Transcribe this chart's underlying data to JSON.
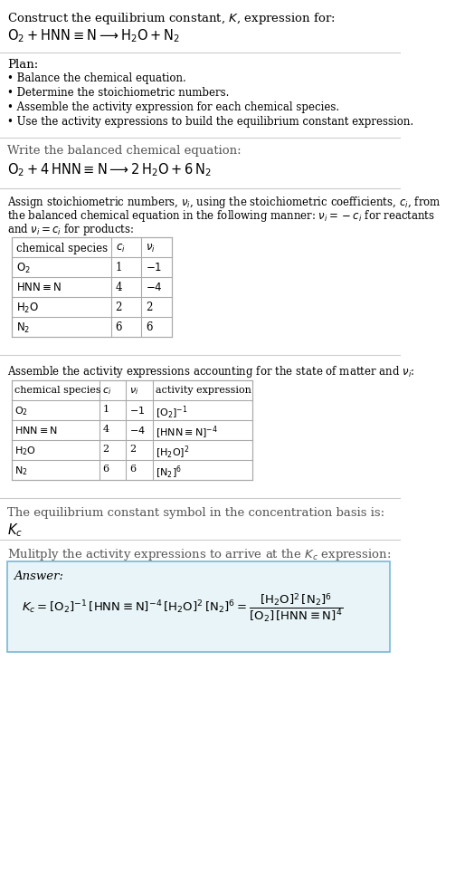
{
  "bg_color": "#ffffff",
  "text_color": "#000000",
  "gray_text": "#555555",
  "table_border": "#aaaaaa",
  "answer_box_bg": "#e8f4f8",
  "answer_box_border": "#7ab8d4",
  "title_line1": "Construct the equilibrium constant, $K$, expression for:",
  "reaction_unbalanced": "$\\mathrm{O_2 + HNN{\\equiv}N \\longrightarrow H_2O + N_2}$",
  "plan_header": "Plan:",
  "plan_items": [
    "\\textbf{\\cdot} Balance the chemical equation.",
    "\\textbf{\\cdot} Determine the stoichiometric numbers.",
    "\\textbf{\\cdot} Assemble the activity expression for each chemical species.",
    "\\textbf{\\cdot} Use the activity expressions to build the equilibrium constant expression."
  ],
  "balanced_header": "Write the balanced chemical equation:",
  "reaction_balanced": "$\\mathrm{O_2 + 4\\,HNN{\\equiv}N \\longrightarrow 2\\,H_2O + 6\\,N_2}$",
  "stoich_header": "Assign stoichiometric numbers, $\\nu_i$, using the stoichiometric coefficients, $c_i$, from\nthe balanced chemical equation in the following manner: $\\nu_i = -c_i$ for reactants\nand $\\nu_i = c_i$ for products:",
  "table1_cols": [
    "chemical species",
    "$c_i$",
    "$\\nu_i$"
  ],
  "table1_rows": [
    [
      "$\\mathrm{O_2}$",
      "1",
      "$-1$"
    ],
    [
      "$\\mathrm{HNN{\\equiv}N}$",
      "4",
      "$-4$"
    ],
    [
      "$\\mathrm{H_2O}$",
      "2",
      "2"
    ],
    [
      "$\\mathrm{N_2}$",
      "6",
      "6"
    ]
  ],
  "activity_header": "Assemble the activity expressions accounting for the state of matter and $\\nu_i$:",
  "table2_cols": [
    "chemical species",
    "$c_i$",
    "$\\nu_i$",
    "activity expression"
  ],
  "table2_rows": [
    [
      "$\\mathrm{O_2}$",
      "1",
      "$-1$",
      "$[\\mathrm{O_2}]^{-1}$"
    ],
    [
      "$\\mathrm{HNN{\\equiv}N}$",
      "4",
      "$-4$",
      "$[\\mathrm{HNN{\\equiv}N}]^{-4}$"
    ],
    [
      "$\\mathrm{H_2O}$",
      "2",
      "2",
      "$[\\mathrm{H_2O}]^{2}$"
    ],
    [
      "$\\mathrm{N_2}$",
      "6",
      "6",
      "$[\\mathrm{N_2}]^{6}$"
    ]
  ],
  "kc_header": "The equilibrium constant symbol in the concentration basis is:",
  "kc_symbol": "$K_c$",
  "multiply_header": "Mulitply the activity expressions to arrive at the $K_c$ expression:",
  "answer_label": "Answer:",
  "answer_eq": "$K_c = [\\mathrm{O_2}]^{-1}\\,[\\mathrm{HNN{\\equiv}N}]^{-4}\\,[\\mathrm{H_2O}]^{2}\\,[\\mathrm{N_2}]^{6} = \\dfrac{[\\mathrm{H_2O}]^2\\,[\\mathrm{N_2}]^6}{[\\mathrm{O_2}]\\,[\\mathrm{HNN{\\equiv}N}]^4}$"
}
